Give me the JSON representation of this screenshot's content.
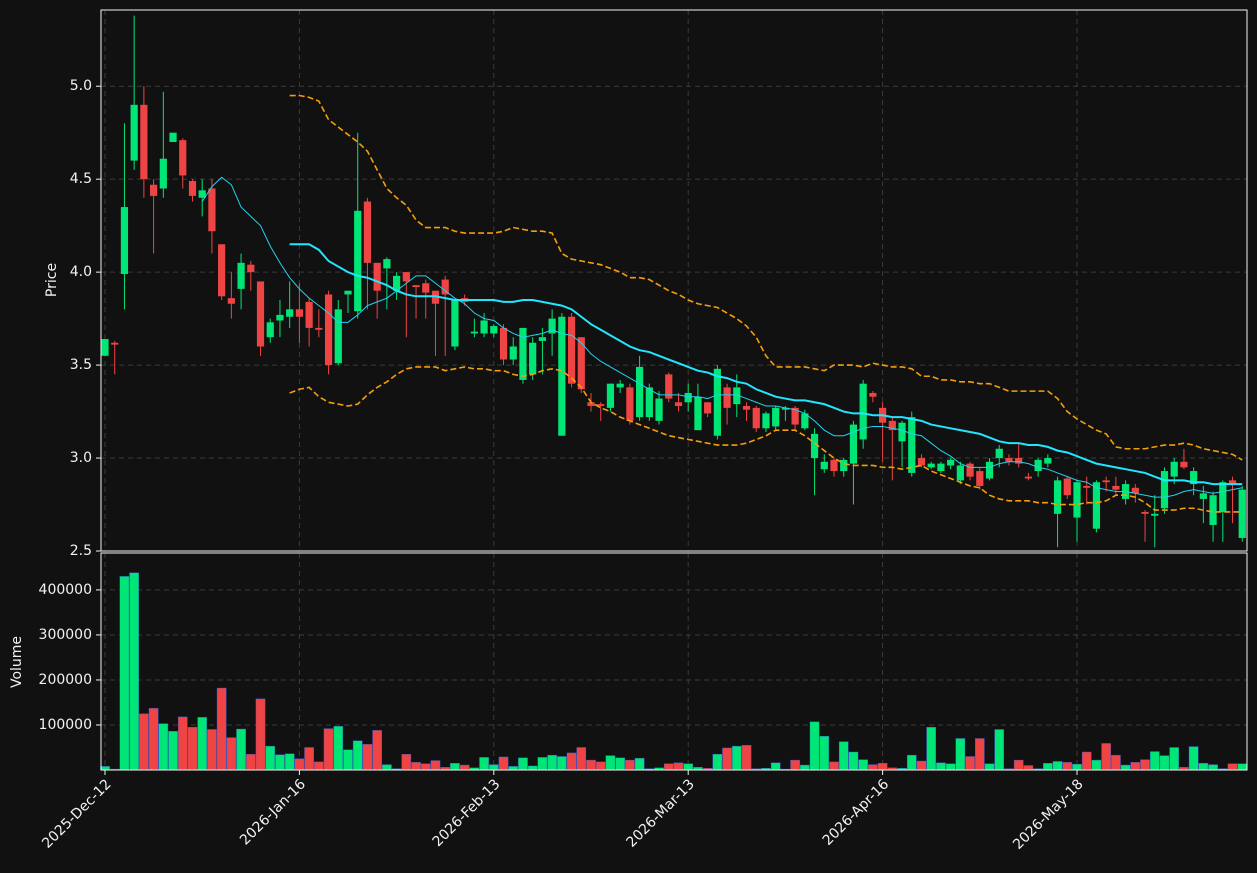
{
  "chart_data": [
    {
      "type": "candlestick",
      "ylabel": "Price",
      "ylim": [
        2.5,
        5.41
      ],
      "yticks": [
        2.5,
        {
          "value": 3,
          "label": "3.0"
        },
        3.5,
        {
          "value": 4,
          "label": "4.0"
        },
        4.5,
        {
          "value": 5,
          "label": "5.0"
        }
      ],
      "grid": true,
      "up_color": "#00e676",
      "down_color": "#ef4444",
      "open": [
        3.55,
        3.62,
        3.99,
        4.6,
        4.9,
        4.47,
        4.45,
        4.7,
        4.71,
        4.49,
        4.4,
        4.45,
        4.15,
        3.86,
        3.91,
        4.04,
        3.95,
        3.65,
        3.74,
        3.76,
        3.8,
        3.84,
        3.7,
        3.88,
        3.51,
        3.88,
        3.79,
        4.38,
        4.05,
        4.02,
        3.9,
        4.0,
        3.93,
        3.94,
        3.9,
        3.96,
        3.6,
        3.86,
        3.67,
        3.67,
        3.67,
        3.7,
        3.53,
        3.42,
        3.45,
        3.63,
        3.67,
        3.12,
        3.76,
        3.65,
        3.3,
        3.29,
        3.27,
        3.38,
        3.38,
        3.22,
        3.22,
        3.2,
        3.45,
        3.3,
        3.3,
        3.15,
        3.3,
        3.12,
        3.38,
        3.29,
        3.28,
        3.27,
        3.16,
        3.17,
        3.26,
        3.27,
        3.16,
        3.0,
        2.94,
        2.99,
        2.93,
        2.97,
        3.1,
        3.35,
        3.27,
        3.2,
        3.09,
        2.92,
        3.0,
        2.95,
        2.93,
        2.96,
        2.88,
        2.97,
        2.93,
        2.89,
        3.0,
        3.0,
        3.0,
        2.9,
        2.93,
        2.97,
        2.7,
        2.89,
        2.68,
        2.85,
        2.62,
        2.88,
        2.85,
        2.78,
        2.84,
        2.71,
        2.69,
        2.73,
        2.9,
        2.98,
        2.86,
        2.78,
        2.64,
        2.71,
        2.88,
        2.57
      ],
      "high": [
        3.64,
        3.63,
        4.8,
        5.38,
        5.0,
        4.5,
        4.97,
        4.75,
        4.72,
        4.5,
        4.5,
        4.5,
        4.15,
        4.0,
        4.1,
        4.06,
        3.95,
        3.75,
        3.85,
        3.95,
        3.94,
        3.86,
        3.8,
        3.9,
        3.85,
        3.9,
        4.75,
        4.4,
        4.05,
        4.08,
        4.0,
        4.0,
        3.93,
        3.96,
        3.9,
        3.98,
        3.85,
        3.88,
        3.75,
        3.78,
        3.72,
        3.72,
        3.65,
        3.7,
        3.65,
        3.7,
        3.8,
        3.78,
        3.78,
        3.65,
        3.35,
        3.3,
        3.4,
        3.42,
        3.4,
        3.55,
        3.4,
        3.36,
        3.46,
        3.35,
        3.4,
        3.4,
        3.3,
        3.5,
        3.4,
        3.45,
        3.3,
        3.28,
        3.25,
        3.28,
        3.28,
        3.28,
        3.26,
        3.16,
        3.02,
        3.0,
        3.0,
        3.2,
        3.42,
        3.36,
        3.3,
        3.22,
        3.2,
        3.25,
        3.02,
        2.98,
        2.98,
        3.0,
        2.98,
        2.98,
        2.95,
        3.0,
        3.07,
        3.02,
        3.08,
        2.92,
        3.0,
        3.02,
        2.9,
        2.9,
        2.88,
        2.9,
        2.88,
        2.9,
        2.9,
        2.88,
        2.86,
        2.72,
        2.8,
        2.95,
        3.0,
        3.05,
        2.95,
        2.85,
        2.82,
        2.88,
        2.9,
        2.85
      ],
      "low": [
        3.55,
        3.45,
        3.8,
        4.55,
        4.4,
        4.1,
        4.4,
        4.7,
        4.45,
        4.38,
        4.3,
        4.1,
        3.85,
        3.75,
        3.8,
        3.9,
        3.55,
        3.62,
        3.65,
        3.7,
        3.62,
        3.6,
        3.65,
        3.45,
        3.5,
        3.78,
        3.75,
        3.8,
        3.75,
        3.8,
        3.85,
        3.65,
        3.75,
        3.75,
        3.55,
        3.55,
        3.58,
        3.82,
        3.65,
        3.65,
        3.65,
        3.5,
        3.5,
        3.4,
        3.42,
        3.45,
        3.55,
        3.12,
        3.38,
        3.35,
        3.25,
        3.2,
        3.25,
        3.35,
        3.18,
        3.2,
        3.2,
        3.18,
        3.3,
        3.25,
        3.25,
        3.15,
        3.22,
        3.1,
        3.18,
        3.22,
        3.2,
        3.14,
        3.14,
        3.15,
        3.2,
        3.15,
        3.15,
        2.8,
        2.92,
        2.9,
        2.9,
        2.75,
        3.05,
        3.3,
        2.98,
        2.88,
        2.95,
        2.9,
        2.95,
        2.94,
        2.92,
        2.94,
        2.86,
        2.88,
        2.83,
        2.88,
        2.95,
        2.96,
        2.95,
        2.88,
        2.9,
        2.95,
        2.52,
        2.78,
        2.55,
        2.75,
        2.6,
        2.82,
        2.8,
        2.75,
        2.76,
        2.55,
        2.52,
        2.7,
        2.86,
        2.94,
        2.8,
        2.65,
        2.55,
        2.55,
        2.65,
        2.55
      ],
      "close": [
        3.64,
        3.61,
        4.35,
        4.9,
        4.5,
        4.41,
        4.61,
        4.75,
        4.52,
        4.41,
        4.44,
        4.22,
        3.87,
        3.83,
        4.05,
        4.0,
        3.6,
        3.73,
        3.77,
        3.8,
        3.76,
        3.7,
        3.69,
        3.5,
        3.8,
        3.9,
        4.33,
        4.05,
        3.9,
        4.07,
        3.98,
        3.95,
        3.92,
        3.89,
        3.83,
        3.88,
        3.85,
        3.84,
        3.68,
        3.74,
        3.71,
        3.53,
        3.6,
        3.7,
        3.62,
        3.65,
        3.75,
        3.76,
        3.4,
        3.37,
        3.28,
        3.28,
        3.4,
        3.4,
        3.2,
        3.49,
        3.38,
        3.32,
        3.32,
        3.28,
        3.35,
        3.33,
        3.24,
        3.48,
        3.27,
        3.38,
        3.26,
        3.16,
        3.24,
        3.27,
        3.27,
        3.18,
        3.24,
        3.13,
        2.98,
        2.93,
        2.99,
        3.18,
        3.4,
        3.33,
        3.19,
        3.15,
        3.19,
        3.22,
        2.96,
        2.97,
        2.97,
        2.99,
        2.96,
        2.9,
        2.85,
        2.98,
        3.05,
        2.98,
        2.97,
        2.89,
        2.99,
        3.0,
        2.88,
        2.8,
        2.87,
        2.84,
        2.87,
        2.87,
        2.83,
        2.86,
        2.81,
        2.7,
        2.7,
        2.93,
        2.98,
        2.95,
        2.93,
        2.81,
        2.8,
        2.87,
        2.86,
        2.83
      ],
      "lines": [
        {
          "color": "#22d3ee",
          "linewidth": 1,
          "style": "solid",
          "values": [
            null,
            null,
            null,
            null,
            null,
            null,
            null,
            null,
            null,
            null,
            4.38,
            4.46,
            4.51,
            4.47,
            4.35,
            4.3,
            4.25,
            4.14,
            4.05,
            3.97,
            3.91,
            3.86,
            3.82,
            3.78,
            3.73,
            3.73,
            3.77,
            3.82,
            3.84,
            3.86,
            3.9,
            3.94,
            3.98,
            3.98,
            3.94,
            3.9,
            3.86,
            3.83,
            3.78,
            3.75,
            3.74,
            3.7,
            3.67,
            3.65,
            3.66,
            3.67,
            3.69,
            3.67,
            3.66,
            3.62,
            3.56,
            3.52,
            3.49,
            3.46,
            3.43,
            3.4,
            3.37,
            3.34,
            3.34,
            3.34,
            3.33,
            3.33,
            3.32,
            3.34,
            3.34,
            3.34,
            3.32,
            3.3,
            3.28,
            3.28,
            3.27,
            3.26,
            3.24,
            3.2,
            3.15,
            3.12,
            3.12,
            3.14,
            3.16,
            3.17,
            3.17,
            3.16,
            3.15,
            3.13,
            3.12,
            3.08,
            3.04,
            3.01,
            2.97,
            2.95,
            2.95,
            2.95,
            2.97,
            2.98,
            2.98,
            2.97,
            2.95,
            2.94,
            2.92,
            2.9,
            2.88,
            2.87,
            2.84,
            2.83,
            2.82,
            2.82,
            2.81,
            2.8,
            2.79,
            2.79,
            2.8,
            2.82,
            2.83,
            2.82,
            2.81,
            2.82,
            2.83,
            2.84
          ]
        },
        {
          "color": "#22e5ff",
          "linewidth": 2,
          "style": "solid",
          "values": [
            null,
            null,
            null,
            null,
            null,
            null,
            null,
            null,
            null,
            null,
            null,
            null,
            null,
            null,
            null,
            null,
            null,
            null,
            null,
            4.15,
            4.15,
            4.15,
            4.12,
            4.06,
            4.03,
            4.0,
            3.98,
            3.97,
            3.95,
            3.93,
            3.9,
            3.88,
            3.87,
            3.87,
            3.87,
            3.86,
            3.85,
            3.85,
            3.85,
            3.85,
            3.85,
            3.84,
            3.84,
            3.85,
            3.85,
            3.84,
            3.83,
            3.82,
            3.8,
            3.76,
            3.72,
            3.69,
            3.66,
            3.63,
            3.6,
            3.58,
            3.57,
            3.55,
            3.53,
            3.51,
            3.49,
            3.47,
            3.46,
            3.44,
            3.43,
            3.41,
            3.4,
            3.37,
            3.35,
            3.33,
            3.32,
            3.31,
            3.31,
            3.3,
            3.29,
            3.27,
            3.25,
            3.24,
            3.24,
            3.23,
            3.23,
            3.22,
            3.22,
            3.21,
            3.2,
            3.18,
            3.17,
            3.16,
            3.15,
            3.14,
            3.13,
            3.11,
            3.09,
            3.08,
            3.08,
            3.07,
            3.07,
            3.06,
            3.04,
            3.03,
            3.01,
            2.99,
            2.97,
            2.96,
            2.95,
            2.94,
            2.93,
            2.92,
            2.9,
            2.88,
            2.88,
            2.88,
            2.87,
            2.87,
            2.86,
            2.86,
            2.86,
            2.86
          ]
        },
        {
          "color": "#f59e0b",
          "linewidth": 1.6,
          "style": "dashed",
          "values": [
            null,
            null,
            null,
            null,
            null,
            null,
            null,
            null,
            null,
            null,
            null,
            null,
            null,
            null,
            null,
            null,
            null,
            null,
            null,
            4.95,
            4.95,
            4.94,
            4.92,
            4.82,
            4.78,
            4.74,
            4.7,
            4.65,
            4.55,
            4.45,
            4.4,
            4.36,
            4.28,
            4.24,
            4.24,
            4.24,
            4.22,
            4.21,
            4.21,
            4.21,
            4.21,
            4.22,
            4.24,
            4.23,
            4.22,
            4.22,
            4.21,
            4.1,
            4.07,
            4.06,
            4.05,
            4.04,
            4.02,
            4.0,
            3.97,
            3.97,
            3.96,
            3.93,
            3.9,
            3.88,
            3.85,
            3.83,
            3.82,
            3.81,
            3.78,
            3.75,
            3.71,
            3.65,
            3.55,
            3.49,
            3.49,
            3.49,
            3.49,
            3.48,
            3.47,
            3.5,
            3.5,
            3.5,
            3.49,
            3.51,
            3.5,
            3.49,
            3.49,
            3.48,
            3.44,
            3.44,
            3.42,
            3.42,
            3.41,
            3.41,
            3.4,
            3.4,
            3.38,
            3.36,
            3.36,
            3.36,
            3.36,
            3.36,
            3.32,
            3.25,
            3.21,
            3.18,
            3.15,
            3.13,
            3.06,
            3.05,
            3.05,
            3.05,
            3.06,
            3.07,
            3.07,
            3.08,
            3.07,
            3.05,
            3.04,
            3.03,
            3.02,
            2.99
          ]
        },
        {
          "color": "#f59e0b",
          "linewidth": 1.6,
          "style": "dashed",
          "values": [
            null,
            null,
            null,
            null,
            null,
            null,
            null,
            null,
            null,
            null,
            null,
            null,
            null,
            null,
            null,
            null,
            null,
            null,
            null,
            3.35,
            3.37,
            3.38,
            3.33,
            3.3,
            3.29,
            3.28,
            3.29,
            3.34,
            3.38,
            3.41,
            3.45,
            3.48,
            3.49,
            3.49,
            3.49,
            3.47,
            3.48,
            3.49,
            3.48,
            3.48,
            3.47,
            3.47,
            3.45,
            3.44,
            3.45,
            3.47,
            3.48,
            3.47,
            3.43,
            3.38,
            3.3,
            3.27,
            3.25,
            3.22,
            3.2,
            3.18,
            3.16,
            3.14,
            3.12,
            3.11,
            3.1,
            3.09,
            3.08,
            3.07,
            3.07,
            3.07,
            3.08,
            3.1,
            3.12,
            3.15,
            3.15,
            3.15,
            3.12,
            3.08,
            3.04,
            3.0,
            2.97,
            2.96,
            2.96,
            2.96,
            2.95,
            2.95,
            2.94,
            2.95,
            2.96,
            2.93,
            2.91,
            2.89,
            2.87,
            2.85,
            2.84,
            2.8,
            2.78,
            2.77,
            2.77,
            2.77,
            2.76,
            2.76,
            2.75,
            2.75,
            2.75,
            2.76,
            2.76,
            2.77,
            2.8,
            2.8,
            2.79,
            2.76,
            2.72,
            2.72,
            2.72,
            2.73,
            2.73,
            2.72,
            2.71,
            2.71,
            2.71,
            2.71
          ]
        }
      ]
    },
    {
      "type": "volume",
      "ylabel": "Volume",
      "ylim": [
        0,
        482000
      ],
      "yticks": [
        100000,
        200000,
        300000,
        400000
      ],
      "grid": true,
      "categories": [
        "2025-Dec-12",
        null,
        null,
        null,
        null,
        null,
        null,
        null,
        null,
        null,
        null,
        null,
        null,
        null,
        null,
        null,
        null,
        null,
        null,
        null,
        "2026-Jan-16",
        null,
        null,
        null,
        null,
        null,
        null,
        null,
        null,
        null,
        null,
        null,
        null,
        null,
        null,
        null,
        null,
        null,
        null,
        null,
        "2026-Feb-13",
        null,
        null,
        null,
        null,
        null,
        null,
        null,
        null,
        null,
        null,
        null,
        null,
        null,
        null,
        null,
        null,
        null,
        null,
        null,
        "2026-Mar-13",
        null,
        null,
        null,
        null,
        null,
        null,
        null,
        null,
        null,
        null,
        null,
        null,
        null,
        null,
        null,
        null,
        null,
        null,
        null,
        "2026-Apr-16",
        null,
        null,
        null,
        null,
        null,
        null,
        null,
        null,
        null,
        null,
        null,
        null,
        null,
        null,
        null,
        null,
        null,
        null,
        null,
        "2026-May-18",
        null,
        null,
        null,
        null,
        null,
        null,
        null,
        null,
        null,
        null,
        null,
        null,
        null,
        null,
        null,
        null,
        null
      ],
      "values": [
        8000,
        2000,
        430000,
        438000,
        125000,
        137000,
        103000,
        86000,
        118000,
        95000,
        117000,
        90000,
        182000,
        72000,
        91000,
        35000,
        158000,
        53000,
        34000,
        36000,
        25000,
        50000,
        18000,
        92000,
        97000,
        45000,
        65000,
        57000,
        88000,
        12000,
        3000,
        35000,
        17000,
        14000,
        21000,
        6000,
        15000,
        11000,
        5000,
        28000,
        12000,
        29000,
        8000,
        27000,
        9000,
        28000,
        33000,
        30000,
        38000,
        50000,
        22000,
        18000,
        32000,
        27000,
        22000,
        26000,
        3000,
        5000,
        14000,
        16000,
        14000,
        6000,
        4000,
        35000,
        49000,
        53000,
        55000,
        3000,
        4000,
        16000,
        2000,
        22000,
        11000,
        107000,
        75000,
        18000,
        63000,
        40000,
        23000,
        12000,
        15000,
        5000,
        4000,
        33000,
        20000,
        95000,
        16000,
        14000,
        70000,
        30000,
        70000,
        14000,
        90000,
        3000,
        22000,
        10000,
        3000,
        15000,
        19000,
        17000,
        13000,
        40000,
        22000,
        59000,
        33000,
        11000,
        17000,
        23000,
        41000,
        32000,
        50000,
        6000,
        52000,
        15000,
        12000,
        3000,
        14000,
        14000
      ]
    }
  ]
}
